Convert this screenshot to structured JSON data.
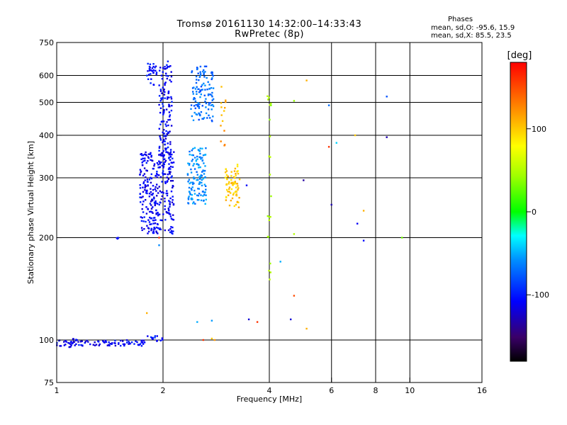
{
  "header": {
    "title_line1": "Tromsø 20161130 14:32:00–14:33:43",
    "title_line2": "RwPretec (8p)"
  },
  "phase_box": {
    "title": "Phases",
    "o_line": "mean, sd,O: -95.6, 15.9",
    "x_line": "mean, sd,X: 85.5, 23.5"
  },
  "colorbar": {
    "unit_label": "[deg]",
    "tick_labels": [
      "100",
      "0",
      "-100"
    ],
    "range": [
      -180,
      180
    ],
    "ticks": [
      100,
      0,
      -100
    ]
  },
  "chart_data": {
    "type": "scatter",
    "title": "Tromsø 20161130 14:32:00–14:33:43",
    "subtitle": "RwPretec (8p)",
    "xlabel": "Frequency [MHz]",
    "ylabel": "Stationary phase Virtual Height [km]",
    "x_scale": "log",
    "y_scale": "log",
    "xlim": [
      1,
      16
    ],
    "ylim": [
      75,
      750
    ],
    "x_ticks": [
      1,
      2,
      4,
      6,
      8,
      10,
      16
    ],
    "x_tick_labels": [
      "1",
      "2",
      "4",
      "6",
      "8",
      "10",
      "16"
    ],
    "y_ticks": [
      75,
      100,
      200,
      300,
      400,
      500,
      600,
      750
    ],
    "y_tick_labels": [
      "75",
      "100",
      "200",
      "300",
      "400",
      "500",
      "600",
      "750"
    ],
    "grid": true,
    "color_encodes": "phase [deg]",
    "clusters": [
      {
        "f_range": [
          1.0,
          1.82
        ],
        "h_range": [
          96,
          100
        ],
        "phase_deg": -110,
        "count": 90
      },
      {
        "f_range": [
          1.08,
          1.16
        ],
        "h_range": [
          95,
          102
        ],
        "phase_deg": -115,
        "count": 12
      },
      {
        "f_range": [
          1.48,
          1.5
        ],
        "h_range": [
          198,
          200
        ],
        "phase_deg": -110,
        "count": 5
      },
      {
        "f_range": [
          1.78,
          2.0
        ],
        "h_range": [
          99,
          103
        ],
        "phase_deg": -100,
        "count": 14
      },
      {
        "f_range": [
          1.72,
          2.15
        ],
        "h_range": [
          205,
          360
        ],
        "phase_deg": -110,
        "count": 320
      },
      {
        "f_range": [
          1.95,
          2.12
        ],
        "h_range": [
          350,
          660
        ],
        "phase_deg": -108,
        "count": 120
      },
      {
        "f_range": [
          1.8,
          1.95
        ],
        "h_range": [
          560,
          650
        ],
        "phase_deg": -105,
        "count": 30
      },
      {
        "f_range": [
          2.35,
          2.65
        ],
        "h_range": [
          250,
          370
        ],
        "phase_deg": -60,
        "count": 130
      },
      {
        "f_range": [
          2.4,
          2.78
        ],
        "h_range": [
          440,
          640
        ],
        "phase_deg": -70,
        "count": 120
      },
      {
        "f_range": [
          3.0,
          3.3
        ],
        "h_range": [
          245,
          330
        ],
        "phase_deg": 100,
        "count": 75
      },
      {
        "f_range": [
          2.9,
          3.05
        ],
        "h_range": [
          350,
          560
        ],
        "phase_deg": 115,
        "count": 14
      },
      {
        "f_range": [
          3.95,
          4.05
        ],
        "h_range": [
          140,
          600
        ],
        "phase_deg": 40,
        "count": 22
      }
    ],
    "isolated_points": [
      {
        "f": 5.1,
        "h": 580,
        "phase_deg": 110
      },
      {
        "f": 4.7,
        "h": 505,
        "phase_deg": 40
      },
      {
        "f": 5.9,
        "h": 490,
        "phase_deg": -70
      },
      {
        "f": 8.6,
        "h": 520,
        "phase_deg": -80
      },
      {
        "f": 6.2,
        "h": 380,
        "phase_deg": -40
      },
      {
        "f": 5.9,
        "h": 370,
        "phase_deg": 160
      },
      {
        "f": 7.0,
        "h": 400,
        "phase_deg": 100
      },
      {
        "f": 8.6,
        "h": 395,
        "phase_deg": -130
      },
      {
        "f": 5.0,
        "h": 295,
        "phase_deg": -135
      },
      {
        "f": 6.0,
        "h": 250,
        "phase_deg": -130
      },
      {
        "f": 7.4,
        "h": 240,
        "phase_deg": 110
      },
      {
        "f": 7.1,
        "h": 220,
        "phase_deg": -110
      },
      {
        "f": 7.4,
        "h": 196,
        "phase_deg": -105
      },
      {
        "f": 9.5,
        "h": 200,
        "phase_deg": 30
      },
      {
        "f": 4.7,
        "h": 205,
        "phase_deg": 50
      },
      {
        "f": 4.3,
        "h": 170,
        "phase_deg": -50
      },
      {
        "f": 4.7,
        "h": 135,
        "phase_deg": 150
      },
      {
        "f": 4.6,
        "h": 115,
        "phase_deg": -120
      },
      {
        "f": 5.1,
        "h": 108,
        "phase_deg": 110
      },
      {
        "f": 3.5,
        "h": 115,
        "phase_deg": -120
      },
      {
        "f": 3.7,
        "h": 113,
        "phase_deg": 160
      },
      {
        "f": 3.45,
        "h": 285,
        "phase_deg": -110
      },
      {
        "f": 2.5,
        "h": 113,
        "phase_deg": -50
      },
      {
        "f": 2.75,
        "h": 114,
        "phase_deg": -55
      },
      {
        "f": 2.6,
        "h": 100,
        "phase_deg": 160
      },
      {
        "f": 2.8,
        "h": 100,
        "phase_deg": 120
      },
      {
        "f": 2.75,
        "h": 101,
        "phase_deg": 100
      },
      {
        "f": 1.8,
        "h": 120,
        "phase_deg": 110
      },
      {
        "f": 1.95,
        "h": 190,
        "phase_deg": -60
      },
      {
        "f": 1.95,
        "h": 200,
        "phase_deg": 160
      }
    ]
  }
}
